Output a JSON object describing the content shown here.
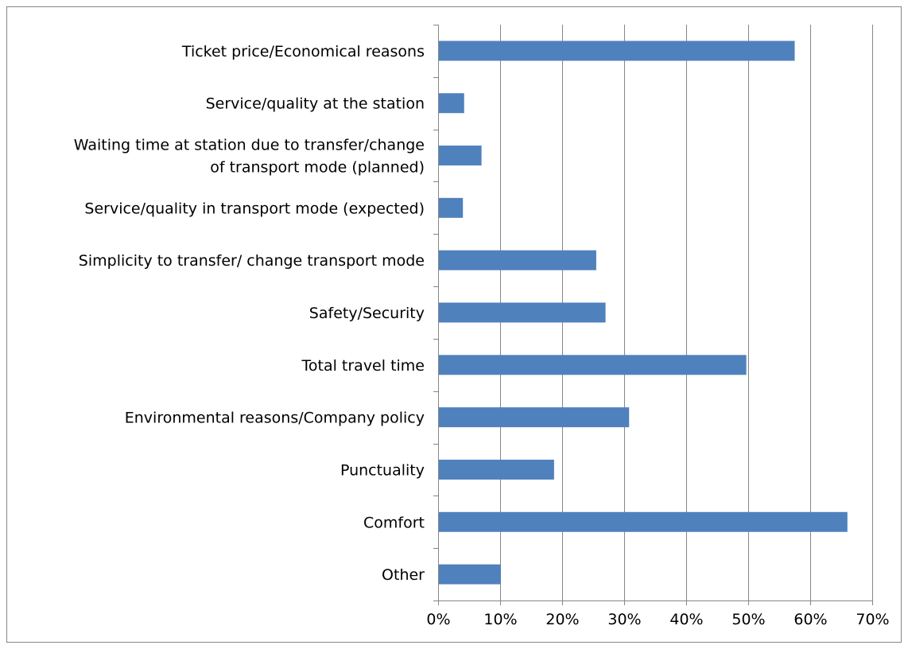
{
  "chart_data": {
    "type": "bar",
    "orientation": "horizontal",
    "title": "",
    "xlabel": "",
    "ylabel": "",
    "xlim": [
      0,
      0.7
    ],
    "x_ticks": [
      0,
      0.1,
      0.2,
      0.3,
      0.4,
      0.5,
      0.6,
      0.7
    ],
    "x_tick_labels": [
      "0%",
      "10%",
      "20%",
      "30%",
      "40%",
      "50%",
      "60%",
      "70%"
    ],
    "grid": "vertical major gridlines",
    "legend": "none",
    "bar_color": "#4F81BD",
    "categories": [
      "Ticket price/Economical reasons",
      "Service/quality at the station",
      "Waiting time at station due to transfer/change of transport mode (planned)",
      "Service/quality in transport mode (expected)",
      "Simplicity to transfer/ change transport mode",
      "Safety/Security",
      "Total travel time",
      "Environmental reasons/Company policy",
      "Punctuality",
      "Comfort",
      "Other"
    ],
    "category_label_lines": [
      [
        "Ticket price/Economical reasons"
      ],
      [
        "Service/quality at the station"
      ],
      [
        "Waiting time at station due to transfer/change",
        "of transport mode (planned)"
      ],
      [
        "Service/quality in transport mode (expected)"
      ],
      [
        "Simplicity to transfer/ change transport mode"
      ],
      [
        "Safety/Security"
      ],
      [
        "Total travel time"
      ],
      [
        "Environmental reasons/Company policy"
      ],
      [
        "Punctuality"
      ],
      [
        "Comfort"
      ],
      [
        "Other"
      ]
    ],
    "values": [
      0.575,
      0.042,
      0.07,
      0.04,
      0.255,
      0.27,
      0.497,
      0.308,
      0.187,
      0.66,
      0.101
    ]
  }
}
